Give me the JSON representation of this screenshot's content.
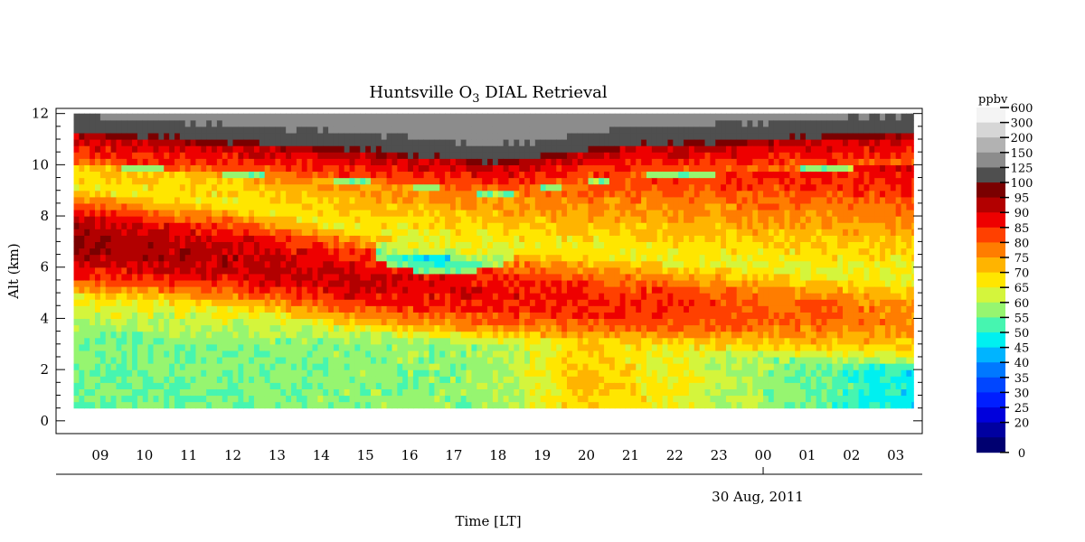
{
  "chart_data": {
    "type": "heatmap",
    "title": "Huntsville O",
    "title_sub": "3",
    "title_rest": " DIAL Retrieval",
    "xlabel": "Time [LT]",
    "ylabel": "Alt (km)",
    "date_label": "30 Aug, 2011",
    "x_range_hours": [
      8.0,
      27.6
    ],
    "xticks": [
      {
        "hour": 9,
        "label": "09"
      },
      {
        "hour": 10,
        "label": "10"
      },
      {
        "hour": 11,
        "label": "11"
      },
      {
        "hour": 12,
        "label": "12"
      },
      {
        "hour": 13,
        "label": "13"
      },
      {
        "hour": 14,
        "label": "14"
      },
      {
        "hour": 15,
        "label": "15"
      },
      {
        "hour": 16,
        "label": "16"
      },
      {
        "hour": 17,
        "label": "17"
      },
      {
        "hour": 18,
        "label": "18"
      },
      {
        "hour": 19,
        "label": "19"
      },
      {
        "hour": 20,
        "label": "20"
      },
      {
        "hour": 21,
        "label": "21"
      },
      {
        "hour": 22,
        "label": "22"
      },
      {
        "hour": 23,
        "label": "23"
      },
      {
        "hour": 24,
        "label": "00"
      },
      {
        "hour": 25,
        "label": "01"
      },
      {
        "hour": 26,
        "label": "02"
      },
      {
        "hour": 27,
        "label": "03"
      }
    ],
    "data_time_range": [
      8.4,
      27.4
    ],
    "data_alt_range": [
      0.5,
      12.0
    ],
    "ylim": [
      -0.5,
      12.2
    ],
    "yticks": [
      0,
      2,
      4,
      6,
      8,
      10,
      12
    ],
    "colorbar": {
      "unit": "ppbv",
      "levels": [
        {
          "label": "600",
          "color": "#f4f4f4"
        },
        {
          "label": "300",
          "color": "#d6d6d6"
        },
        {
          "label": "200",
          "color": "#b2b2b2"
        },
        {
          "label": "150",
          "color": "#8c8c8c"
        },
        {
          "label": "125",
          "color": "#4f4f4f"
        },
        {
          "label": "100",
          "color": "#7a0000"
        },
        {
          "label": "95",
          "color": "#b20000"
        },
        {
          "label": "90",
          "color": "#ee0000"
        },
        {
          "label": "85",
          "color": "#ff4000"
        },
        {
          "label": "80",
          "color": "#ff7d00"
        },
        {
          "label": "75",
          "color": "#ffb400"
        },
        {
          "label": "70",
          "color": "#ffe600"
        },
        {
          "label": "65",
          "color": "#d4f53c"
        },
        {
          "label": "60",
          "color": "#96f570"
        },
        {
          "label": "55",
          "color": "#46f5b0"
        },
        {
          "label": "50",
          "color": "#00f0f0"
        },
        {
          "label": "45",
          "color": "#00b4ff"
        },
        {
          "label": "40",
          "color": "#0078ff"
        },
        {
          "label": "35",
          "color": "#0046ff"
        },
        {
          "label": "30",
          "color": "#001eff"
        },
        {
          "label": "25",
          "color": "#0000dc"
        },
        {
          "label": "20",
          "color": "#0000a0"
        },
        {
          "label": "0",
          "color": "#000070"
        }
      ]
    },
    "field_description": {
      "upper_layer_ppbv": [
        [
          8.4,
          7.0,
          100
        ],
        [
          12.0,
          6.4,
          97
        ],
        [
          15.0,
          5.5,
          95
        ],
        [
          18.0,
          5.0,
          92
        ],
        [
          21.0,
          4.6,
          90
        ],
        [
          24.0,
          4.3,
          86
        ],
        [
          27.4,
          4.0,
          82
        ]
      ],
      "low_pocket_ppbv": [
        16.8,
        6.6,
        45
      ],
      "tropopause_km": [
        [
          8.4,
          11.0
        ],
        [
          12.0,
          10.6
        ],
        [
          15.0,
          10.3
        ],
        [
          18.0,
          9.8
        ],
        [
          21.0,
          10.5
        ],
        [
          24.0,
          10.7
        ],
        [
          27.4,
          11.0
        ]
      ],
      "boundary_layer_ppbv": [
        [
          8.4,
          60
        ],
        [
          18.0,
          63
        ],
        [
          20.0,
          76
        ],
        [
          27.4,
          52
        ]
      ]
    }
  }
}
